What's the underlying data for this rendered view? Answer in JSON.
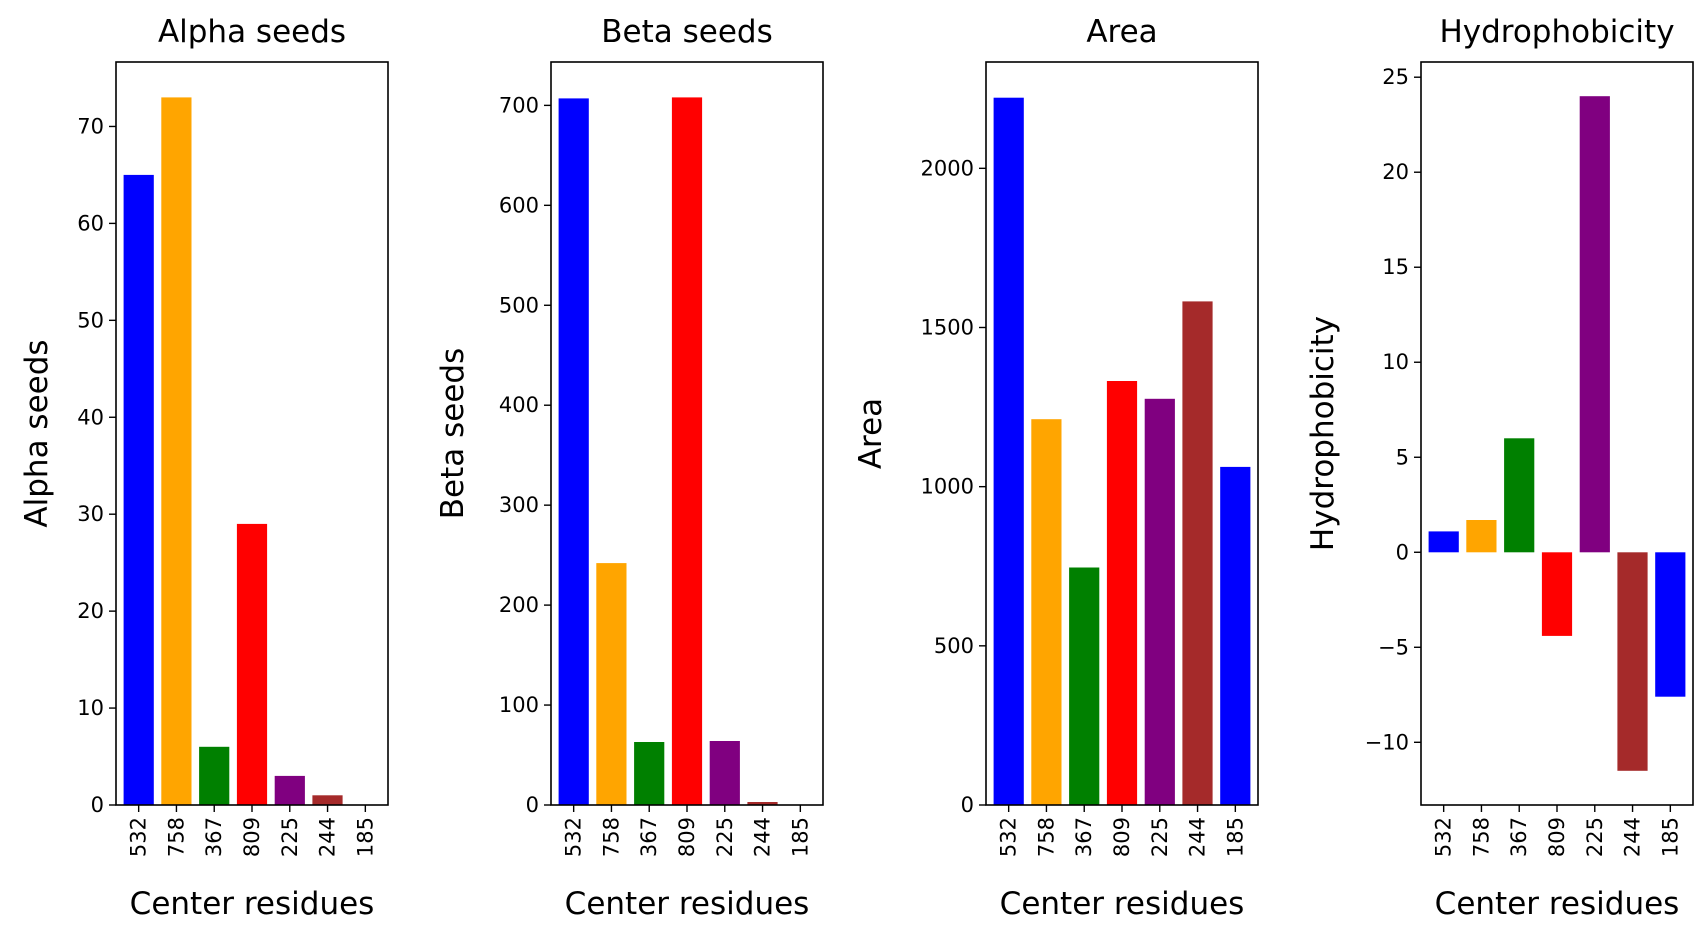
{
  "chart_data": [
    {
      "type": "bar",
      "title": "Alpha seeds",
      "xlabel": "Center residues",
      "ylabel": "Alpha seeds",
      "categories": [
        "532",
        "758",
        "367",
        "809",
        "225",
        "244",
        "185"
      ],
      "values": [
        65,
        73,
        6,
        29,
        3,
        1,
        0
      ],
      "colors": [
        "#0000ff",
        "#ffa500",
        "#008000",
        "#ff0000",
        "#800080",
        "#a52a2a",
        "#0000ff"
      ],
      "ylim": [
        0,
        76.65
      ],
      "yticks": [
        0,
        10,
        20,
        30,
        40,
        50,
        60,
        70
      ],
      "ytick_labels": [
        "0",
        "10",
        "20",
        "30",
        "40",
        "50",
        "60",
        "70"
      ]
    },
    {
      "type": "bar",
      "title": "Beta seeds",
      "xlabel": "Center residues",
      "ylabel": "Beta seeds",
      "categories": [
        "532",
        "758",
        "367",
        "809",
        "225",
        "244",
        "185"
      ],
      "values": [
        707,
        242,
        63,
        708,
        64,
        3,
        0
      ],
      "colors": [
        "#0000ff",
        "#ffa500",
        "#008000",
        "#ff0000",
        "#800080",
        "#a52a2a",
        "#0000ff"
      ],
      "ylim": [
        0,
        743.4
      ],
      "yticks": [
        0,
        100,
        200,
        300,
        400,
        500,
        600,
        700
      ],
      "ytick_labels": [
        "0",
        "100",
        "200",
        "300",
        "400",
        "500",
        "600",
        "700"
      ]
    },
    {
      "type": "bar",
      "title": "Area",
      "xlabel": "Center residues",
      "ylabel": "Area",
      "categories": [
        "532",
        "758",
        "367",
        "809",
        "225",
        "244",
        "185"
      ],
      "values": [
        2222,
        1212,
        746,
        1332,
        1276,
        1582,
        1062
      ],
      "colors": [
        "#0000ff",
        "#ffa500",
        "#008000",
        "#ff0000",
        "#800080",
        "#a52a2a",
        "#0000ff"
      ],
      "ylim": [
        0,
        2334
      ],
      "yticks": [
        0,
        500,
        1000,
        1500,
        2000
      ],
      "ytick_labels": [
        "0",
        "500",
        "1000",
        "1500",
        "2000"
      ]
    },
    {
      "type": "bar",
      "title": "Hydrophobicity",
      "xlabel": "Center residues",
      "ylabel": "Hydrophobicity",
      "categories": [
        "532",
        "758",
        "367",
        "809",
        "225",
        "244",
        "185"
      ],
      "values": [
        1.1,
        1.7,
        6.0,
        -4.4,
        24.0,
        -11.5,
        -7.6
      ],
      "colors": [
        "#0000ff",
        "#ffa500",
        "#008000",
        "#ff0000",
        "#800080",
        "#a52a2a",
        "#0000ff"
      ],
      "ylim": [
        -13.3,
        25.8
      ],
      "yticks": [
        -10,
        -5,
        0,
        5,
        10,
        15,
        20,
        25
      ],
      "ytick_labels": [
        "−10",
        "−5",
        "0",
        "5",
        "10",
        "15",
        "20",
        "25"
      ]
    }
  ]
}
